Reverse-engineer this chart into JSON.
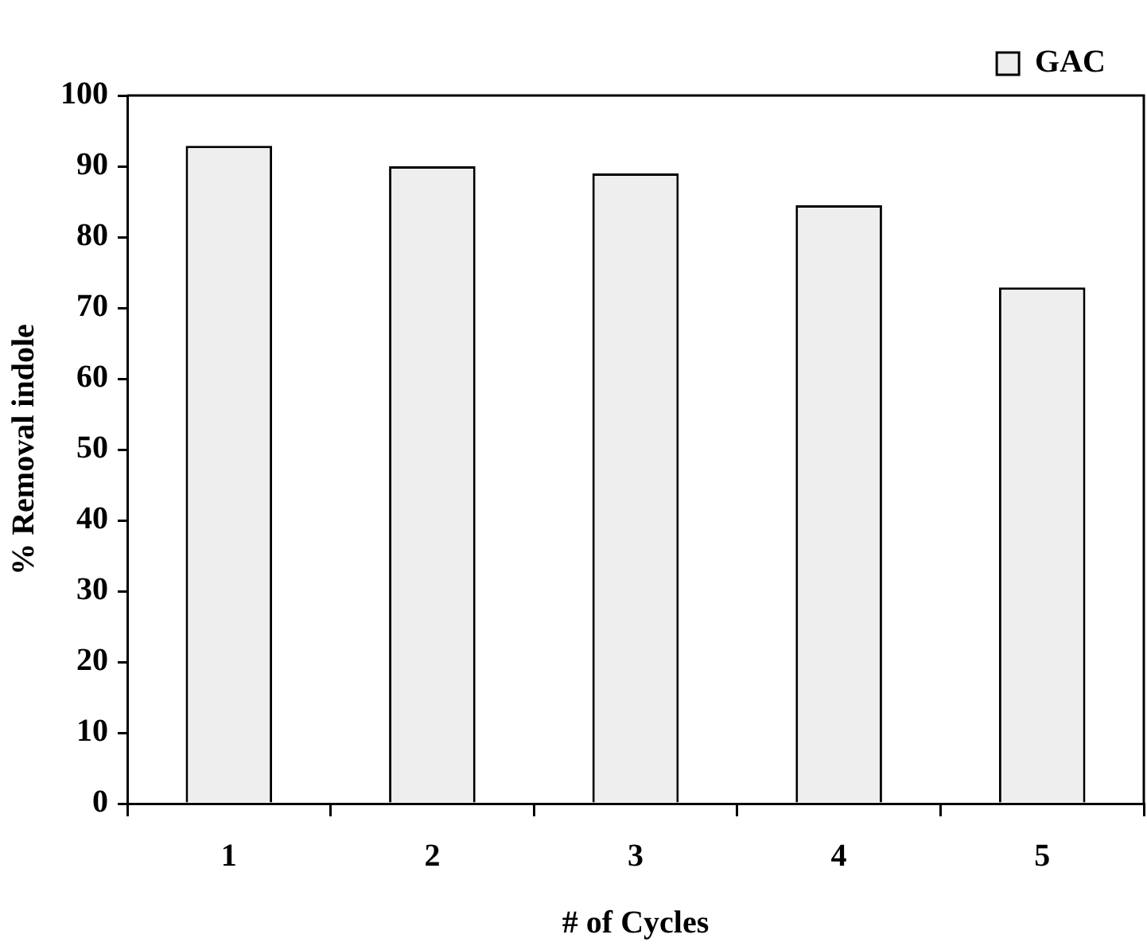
{
  "chart_data": {
    "type": "bar",
    "xlabel": "# of Cycles",
    "ylabel": "% Removal indole",
    "categories": [
      "1",
      "2",
      "3",
      "4",
      "5"
    ],
    "series": [
      {
        "name": "GAC",
        "color": "#eeeeee",
        "values": [
          92.9,
          90,
          89,
          84.5,
          72.9
        ]
      }
    ],
    "ylim": [
      0,
      100
    ],
    "yticks": [
      0,
      10,
      20,
      30,
      40,
      50,
      60,
      70,
      80,
      90,
      100
    ],
    "grid": false,
    "legend": "top right"
  }
}
